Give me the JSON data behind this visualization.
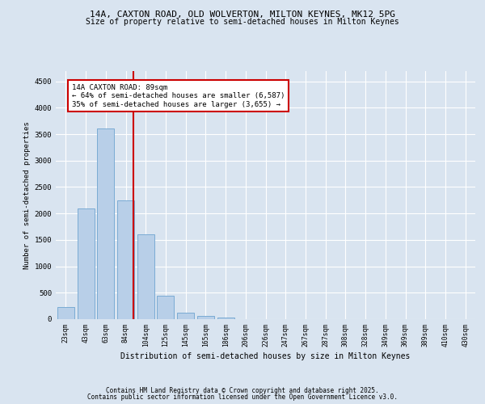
{
  "title1": "14A, CAXTON ROAD, OLD WOLVERTON, MILTON KEYNES, MK12 5PG",
  "title2": "Size of property relative to semi-detached houses in Milton Keynes",
  "xlabel": "Distribution of semi-detached houses by size in Milton Keynes",
  "ylabel": "Number of semi-detached properties",
  "categories": [
    "23sqm",
    "43sqm",
    "63sqm",
    "84sqm",
    "104sqm",
    "125sqm",
    "145sqm",
    "165sqm",
    "186sqm",
    "206sqm",
    "226sqm",
    "247sqm",
    "267sqm",
    "287sqm",
    "308sqm",
    "328sqm",
    "349sqm",
    "369sqm",
    "389sqm",
    "410sqm",
    "430sqm"
  ],
  "values": [
    230,
    2100,
    3600,
    2250,
    1600,
    440,
    120,
    60,
    30,
    0,
    0,
    0,
    0,
    0,
    0,
    0,
    0,
    0,
    0,
    0,
    0
  ],
  "bar_color": "#b8cfe8",
  "bar_edge_color": "#7aabd4",
  "vline_color": "#cc0000",
  "vline_x_index": 3.4,
  "annotation_title": "14A CAXTON ROAD: 89sqm",
  "annotation_line1": "← 64% of semi-detached houses are smaller (6,587)",
  "annotation_line2": "35% of semi-detached houses are larger (3,655) →",
  "annotation_box_color": "#ffffff",
  "annotation_box_edge": "#cc0000",
  "ylim": [
    0,
    4700
  ],
  "yticks": [
    0,
    500,
    1000,
    1500,
    2000,
    2500,
    3000,
    3500,
    4000,
    4500
  ],
  "bg_color": "#d9e4f0",
  "plot_bg_color": "#d9e4f0",
  "grid_color": "#ffffff",
  "footnote1": "Contains HM Land Registry data © Crown copyright and database right 2025.",
  "footnote2": "Contains public sector information licensed under the Open Government Licence v3.0."
}
